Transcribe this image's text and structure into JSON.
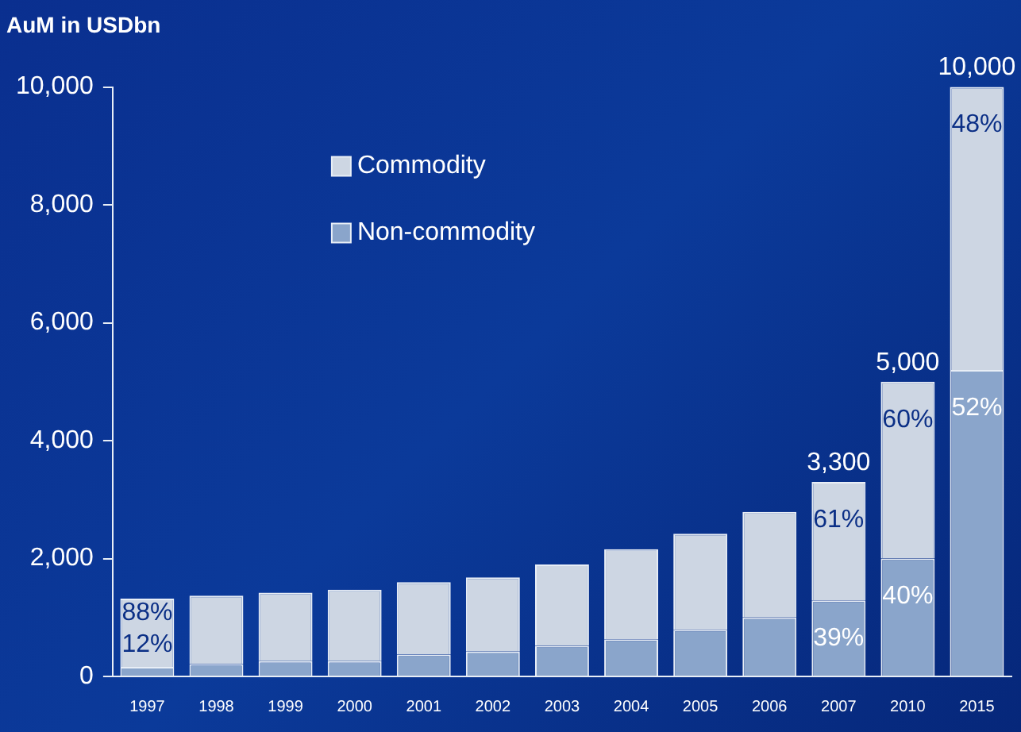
{
  "chart_data": {
    "type": "bar",
    "title": "AuM in USDbn",
    "stacked": true,
    "categories": [
      "1997",
      "1998",
      "1999",
      "2000",
      "2001",
      "2002",
      "2003",
      "2004",
      "2005",
      "2006",
      "2007",
      "2010",
      "2015"
    ],
    "series": [
      {
        "name": "Non-commodity",
        "color": "#8aa5cb",
        "values": [
          160,
          210,
          260,
          260,
          370,
          420,
          520,
          630,
          790,
          1000,
          1290,
          2000,
          5200
        ]
      },
      {
        "name": "Commodity",
        "color": "#cdd6e3",
        "values": [
          1160,
          1160,
          1160,
          1210,
          1230,
          1260,
          1380,
          1530,
          1630,
          1790,
          2010,
          3000,
          4800
        ]
      }
    ],
    "ylim": [
      0,
      10000
    ],
    "yticks": [
      {
        "value": 0,
        "label": "0"
      },
      {
        "value": 2000,
        "label": "2,000"
      },
      {
        "value": 4000,
        "label": "4,000"
      },
      {
        "value": 6000,
        "label": "6,000"
      },
      {
        "value": 8000,
        "label": "8,000"
      },
      {
        "value": 10000,
        "label": "10,000"
      }
    ],
    "totals": [
      null,
      null,
      null,
      null,
      null,
      null,
      null,
      null,
      null,
      null,
      "3,300",
      "5,000",
      "10,000"
    ],
    "annotations": [
      {
        "text": "88%",
        "x": "1997",
        "y": 1320
      },
      {
        "text": "12%",
        "x": "1997",
        "y": 160
      },
      {
        "text": "61%",
        "x": "2007",
        "y": 3300
      },
      {
        "text": "39%",
        "x": "2007",
        "y": 1290
      },
      {
        "text": "60%",
        "x": "2010",
        "y": 5000
      },
      {
        "text": "40%",
        "x": "2010",
        "y": 2000
      },
      {
        "text": "48%",
        "x": "2015",
        "y": 10000
      },
      {
        "text": "52%",
        "x": "2015",
        "y": 5200
      }
    ],
    "grid": false,
    "legend": "top left"
  }
}
